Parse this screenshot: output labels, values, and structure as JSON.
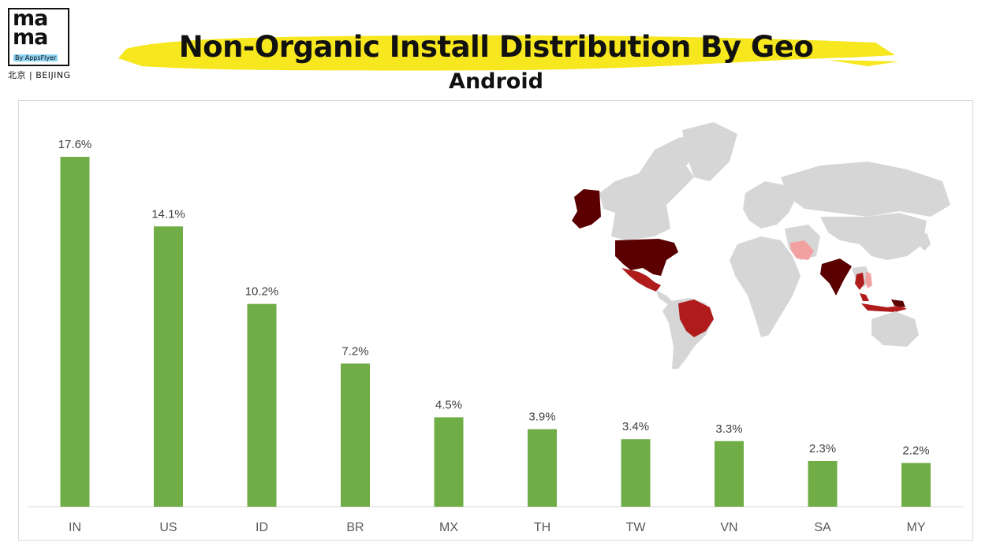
{
  "logo": {
    "mark": "ma ma",
    "by": "By AppsFlyer",
    "city": "北京 | BEIJING"
  },
  "header": {
    "title": "Non-Organic Install Distribution By Geo",
    "subtitle": "Android"
  },
  "colors": {
    "bar": "#70ad47",
    "highlight_brush": "#f6e71e",
    "map_base": "#d6d6d6",
    "map_dark": "#5a0000",
    "map_mid": "#b01c1c",
    "map_light": "#f2a0a0"
  },
  "map": {
    "highlighted_countries": [
      "US",
      "MX",
      "BR",
      "IN",
      "ID",
      "TH",
      "VN",
      "MY",
      "SA"
    ]
  },
  "chart_data": {
    "type": "bar",
    "categories": [
      "IN",
      "US",
      "ID",
      "BR",
      "MX",
      "TH",
      "TW",
      "VN",
      "SA",
      "MY"
    ],
    "values": [
      17.6,
      14.1,
      10.2,
      7.2,
      4.5,
      3.9,
      3.4,
      3.3,
      2.3,
      2.2
    ],
    "value_labels": [
      "17.6%",
      "14.1%",
      "10.2%",
      "7.2%",
      "4.5%",
      "3.9%",
      "3.4%",
      "3.3%",
      "2.3%",
      "2.2%"
    ],
    "ylim": [
      0,
      17.6
    ],
    "grid": false,
    "legend": "none"
  }
}
